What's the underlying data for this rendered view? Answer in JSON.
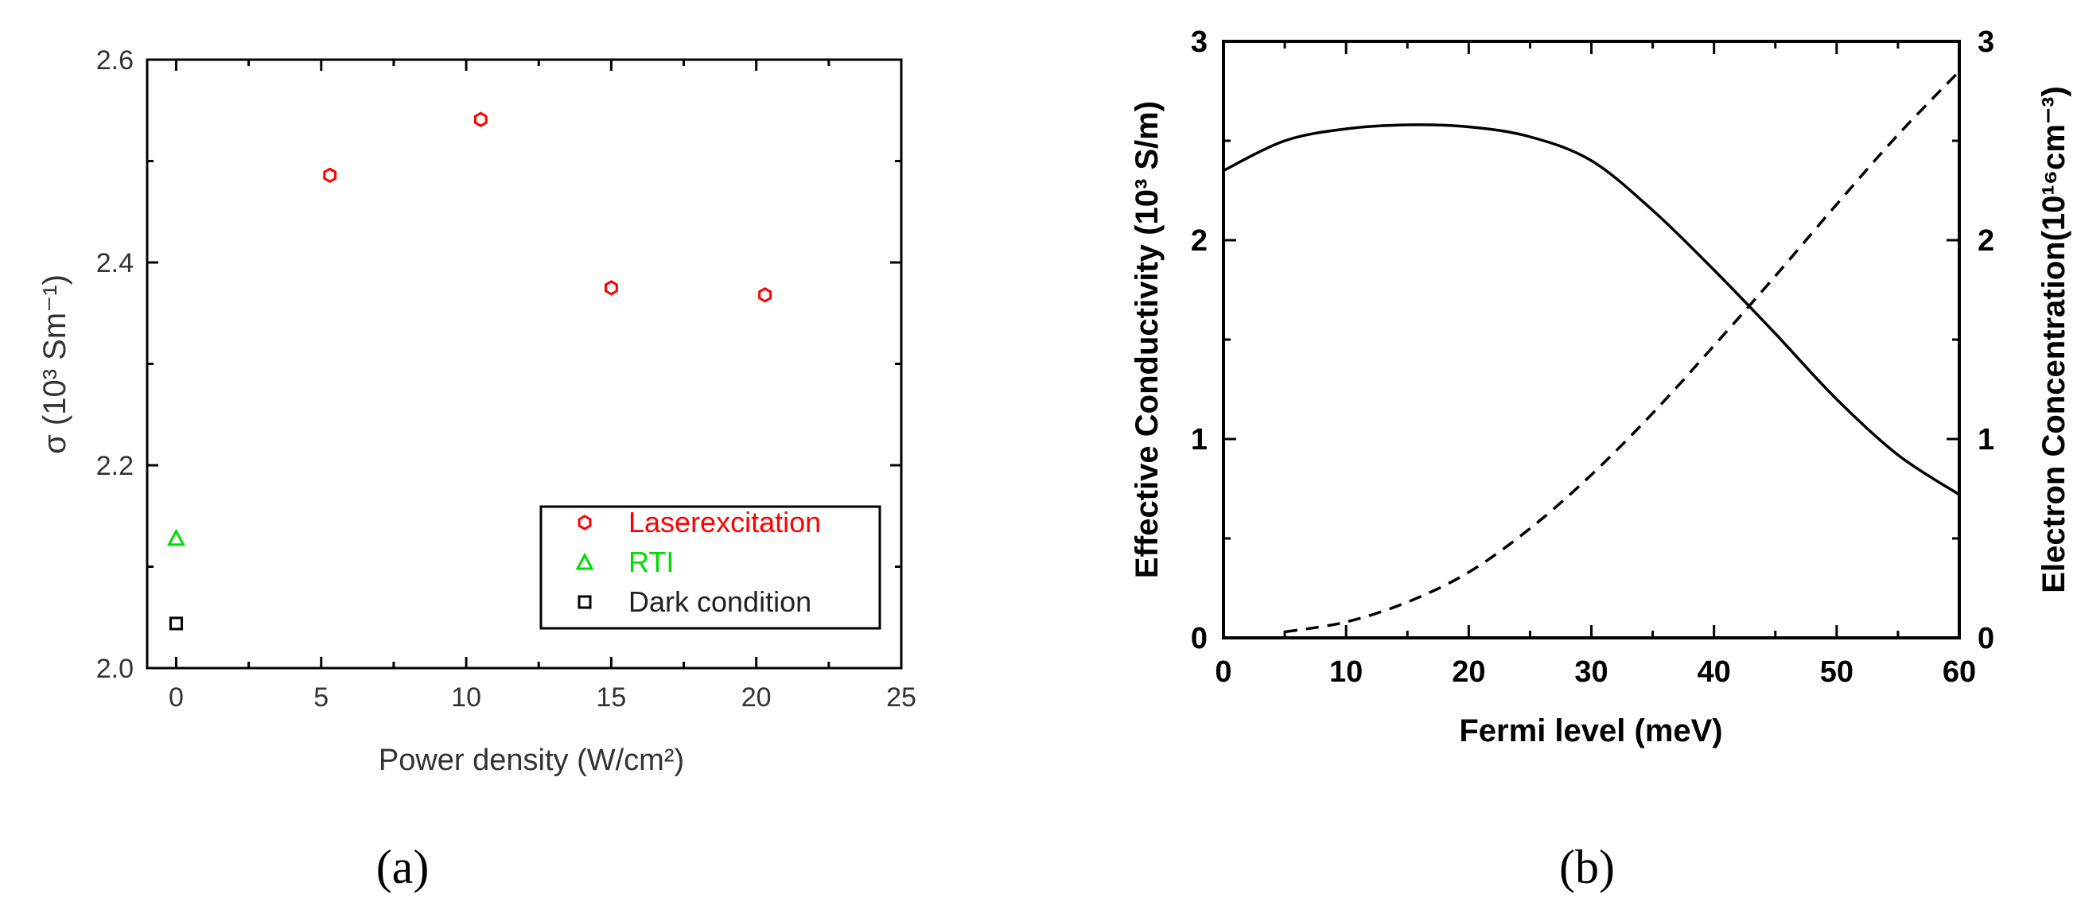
{
  "chart_data": [
    {
      "panel_label": "(a)",
      "type": "scatter",
      "xlabel": "Power density (W/cm²)",
      "ylabel": "σ (10³ Sm⁻¹)",
      "xlim": [
        -1,
        25
      ],
      "ylim": [
        2.0,
        2.6
      ],
      "xticks": [
        "0",
        "5",
        "10",
        "15",
        "20",
        "25"
      ],
      "yticks": [
        "2.0",
        "2.2",
        "2.4",
        "2.6"
      ],
      "grid": false,
      "legend_position": "bottom-right",
      "series": [
        {
          "name": "Laserexcitation",
          "marker": "hexagon",
          "color": "#ff0000",
          "points": [
            {
              "x": 5.3,
              "y": 2.486
            },
            {
              "x": 10.5,
              "y": 2.541
            },
            {
              "x": 15.0,
              "y": 2.375
            },
            {
              "x": 20.3,
              "y": 2.368
            }
          ]
        },
        {
          "name": "RTI",
          "marker": "triangle",
          "color": "#00dd00",
          "points": [
            {
              "x": 0.0,
              "y": 2.128
            }
          ]
        },
        {
          "name": "Dark condition",
          "marker": "square",
          "color": "#000000",
          "points": [
            {
              "x": 0.0,
              "y": 2.044
            }
          ]
        }
      ]
    },
    {
      "panel_label": "(b)",
      "type": "line",
      "xlabel": "Fermi level (meV)",
      "ylabel_left": "Effective Conductivity (10³ S/m)",
      "ylabel_right": "Electron Concentration(10¹⁶cm⁻³)",
      "xlim": [
        0,
        60
      ],
      "ylim_left": [
        0,
        3
      ],
      "ylim_right": [
        0,
        3
      ],
      "xticks": [
        "0",
        "10",
        "20",
        "30",
        "40",
        "50",
        "60"
      ],
      "yticks_left": [
        "0",
        "1",
        "2",
        "3"
      ],
      "yticks_right": [
        "0",
        "1",
        "2",
        "3"
      ],
      "grid": false,
      "series": [
        {
          "name": "",
          "axis": "left",
          "style": "solid",
          "x": [
            0,
            5,
            10,
            15,
            20,
            25,
            30,
            35,
            40,
            45,
            50,
            55,
            60
          ],
          "values": [
            2.35,
            2.5,
            2.56,
            2.58,
            2.57,
            2.52,
            2.4,
            2.15,
            1.85,
            1.53,
            1.2,
            0.92,
            0.72
          ]
        },
        {
          "name": "",
          "axis": "right",
          "style": "dashed",
          "x": [
            5,
            10,
            15,
            20,
            25,
            30,
            35,
            40,
            45,
            50,
            55,
            60
          ],
          "values": [
            0.03,
            0.08,
            0.18,
            0.33,
            0.55,
            0.82,
            1.13,
            1.47,
            1.82,
            2.18,
            2.53,
            2.85
          ]
        }
      ]
    }
  ]
}
